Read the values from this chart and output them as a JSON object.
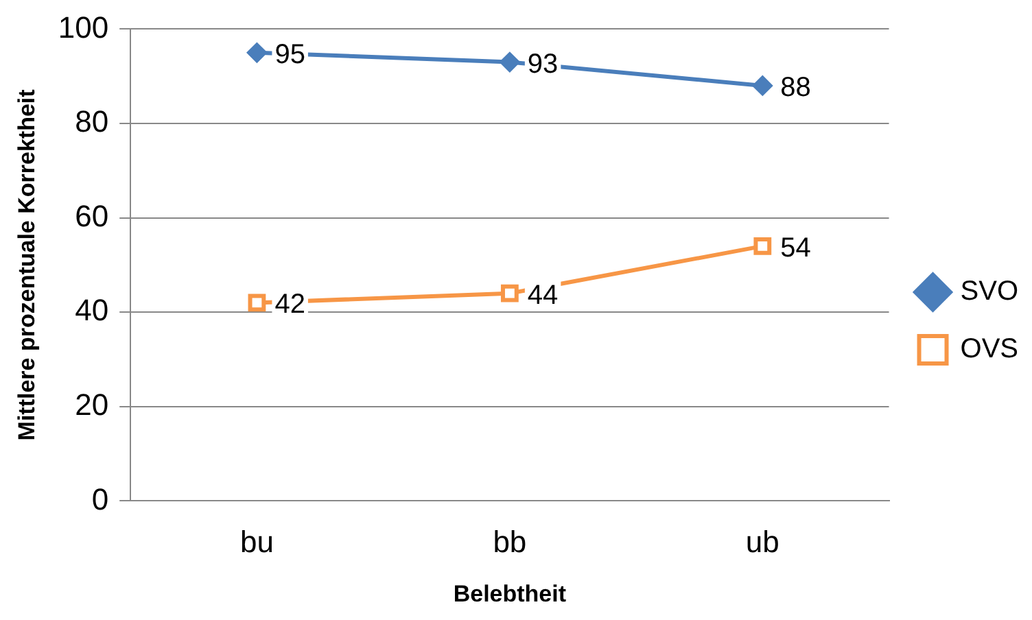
{
  "chart_data": {
    "type": "line",
    "xlabel": "Belebtheit",
    "ylabel": "Mittlere prozentuale Korrektheit",
    "categories": [
      "bu",
      "bb",
      "ub"
    ],
    "series": [
      {
        "name": "SVO",
        "color": "#4a7ebb",
        "values": [
          95,
          93,
          88
        ],
        "marker": "diamond"
      },
      {
        "name": "OVS",
        "color": "#f79646",
        "values": [
          42,
          44,
          54
        ],
        "marker": "square"
      }
    ],
    "ylim": [
      0,
      100
    ],
    "yticks": [
      0,
      20,
      40,
      60,
      80,
      100
    ],
    "grid": "y",
    "legend": "right",
    "data_labels": true,
    "line_style": "solid"
  }
}
